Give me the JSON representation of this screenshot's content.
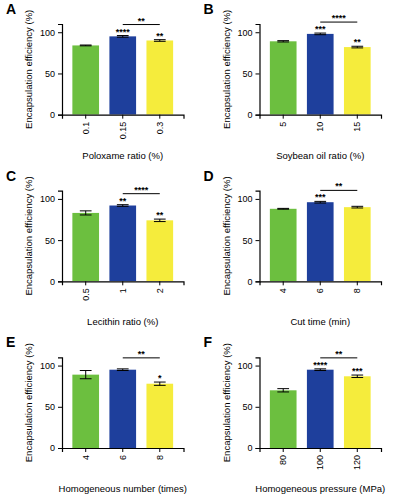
{
  "chart_data": [
    {
      "type": "bar",
      "title": "A",
      "x_label": "Poloxame ratio (%)",
      "y_label": "Encapsulation efficiency (%)",
      "categories": [
        "0.1",
        "0.15",
        "0.3"
      ],
      "values": [
        84,
        95,
        90
      ],
      "errors": [
        0.5,
        1,
        1
      ],
      "colors": [
        "#6cbf3f",
        "#1e3f9c",
        "#f5ec3c"
      ],
      "ylim": [
        0,
        110
      ],
      "yticks": [
        0,
        50,
        100
      ],
      "annotations": [
        null,
        "****",
        "**"
      ],
      "comparison": {
        "between": [
          "0.15",
          "0.3"
        ],
        "label": "**"
      }
    },
    {
      "type": "bar",
      "title": "B",
      "x_label": "Soybean oil ratio (%)",
      "y_label": "Encapsulation efficiency (%)",
      "categories": [
        "5",
        "10",
        "15"
      ],
      "values": [
        89,
        98,
        82
      ],
      "errors": [
        0.8,
        1,
        1
      ],
      "colors": [
        "#6cbf3f",
        "#1e3f9c",
        "#f5ec3c"
      ],
      "ylim": [
        0,
        110
      ],
      "yticks": [
        0,
        50,
        100
      ],
      "annotations": [
        null,
        "***",
        "**"
      ],
      "comparison": {
        "between": [
          "10",
          "15"
        ],
        "label": "****"
      }
    },
    {
      "type": "bar",
      "title": "C",
      "x_label": "Lecithin ratio (%)",
      "y_label": "Encapsulation efficiency (%)",
      "categories": [
        "0.5",
        "1",
        "2"
      ],
      "values": [
        83,
        92,
        74
      ],
      "errors": [
        2.5,
        1,
        1.5
      ],
      "colors": [
        "#6cbf3f",
        "#1e3f9c",
        "#f5ec3c"
      ],
      "ylim": [
        0,
        110
      ],
      "yticks": [
        0,
        50,
        100
      ],
      "annotations": [
        null,
        "**",
        "**"
      ],
      "comparison": {
        "between": [
          "1",
          "2"
        ],
        "label": "****"
      }
    },
    {
      "type": "bar",
      "title": "D",
      "x_label": "Cut time (min)",
      "y_label": "Encapsulation efficiency (%)",
      "categories": [
        "4",
        "6",
        "8"
      ],
      "values": [
        88,
        96,
        90
      ],
      "errors": [
        0.5,
        1,
        1
      ],
      "colors": [
        "#6cbf3f",
        "#1e3f9c",
        "#f5ec3c"
      ],
      "ylim": [
        0,
        110
      ],
      "yticks": [
        0,
        50,
        100
      ],
      "annotations": [
        null,
        "***",
        null
      ],
      "comparison": {
        "between": [
          "6",
          "8"
        ],
        "label": "**"
      }
    },
    {
      "type": "bar",
      "title": "E",
      "x_label": "Homogeneous number (times)",
      "y_label": "Encapsulation efficiency (%)",
      "categories": [
        "4",
        "6",
        "8"
      ],
      "values": [
        89,
        95,
        78
      ],
      "errors": [
        5,
        1,
        2
      ],
      "colors": [
        "#6cbf3f",
        "#1e3f9c",
        "#f5ec3c"
      ],
      "ylim": [
        0,
        110
      ],
      "yticks": [
        0,
        50,
        100
      ],
      "annotations": [
        null,
        null,
        "*"
      ],
      "comparison": {
        "between": [
          "6",
          "8"
        ],
        "label": "**"
      }
    },
    {
      "type": "bar",
      "title": "F",
      "x_label": "Homogeneous pressure (MPa)",
      "y_label": "Encapsulation efficiency (%)",
      "categories": [
        "80",
        "100",
        "120"
      ],
      "values": [
        70,
        95,
        87
      ],
      "errors": [
        2,
        1,
        1.5
      ],
      "colors": [
        "#6cbf3f",
        "#1e3f9c",
        "#f5ec3c"
      ],
      "ylim": [
        0,
        110
      ],
      "yticks": [
        0,
        50,
        100
      ],
      "annotations": [
        null,
        "****",
        "***"
      ],
      "comparison": {
        "between": [
          "100",
          "120"
        ],
        "label": "**"
      }
    }
  ]
}
